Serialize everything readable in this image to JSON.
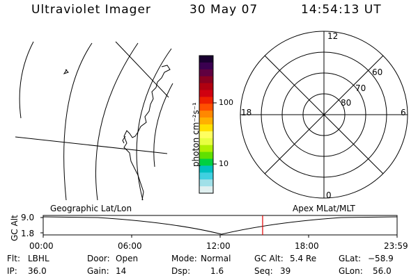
{
  "header": {
    "title": "Ultraviolet Imager",
    "date": "30 May 07",
    "time": "14:54:13 UT"
  },
  "colorbar": {
    "unit_label": "photon cm⁻²s⁻¹",
    "ticks": [
      "100",
      "10"
    ],
    "colors": [
      "#1a0030",
      "#3a0050",
      "#600040",
      "#8a0020",
      "#b00010",
      "#d00010",
      "#ee2000",
      "#ff5000",
      "#ff8800",
      "#ffb000",
      "#ffe000",
      "#ffff60",
      "#e8ff40",
      "#b0f000",
      "#60e000",
      "#00d040",
      "#00c0c0",
      "#40d0e0",
      "#a0e0e8",
      "#e0f0f0"
    ]
  },
  "polar_plot": {
    "labels": {
      "top": "12",
      "bottom": "0",
      "left": "18",
      "right": "6"
    },
    "lat_labels": [
      "60",
      "70",
      "80"
    ]
  },
  "timeline": {
    "left_label": "Geographic Lat/Lon",
    "right_label": "Apex  MLat/MLT",
    "y_axis_title": "GC Alt",
    "y_ticks": [
      "9.0",
      "1.8"
    ],
    "x_ticks": [
      "00:00",
      "06:00",
      "12:00",
      "18:00",
      "23:59"
    ],
    "current_time_fraction": 0.62
  },
  "status": {
    "flt_label": "Flt:",
    "flt_value": "LBHL",
    "ip_label": "IP:",
    "ip_value": "36.0",
    "door_label": "Door:",
    "door_value": "Open",
    "gain_label": "Gain:",
    "gain_value": "14",
    "mode_label": "Mode:",
    "mode_value": "Normal",
    "dsp_label": "Dsp:",
    "dsp_value": "1.6",
    "gcalt_label": "GC Alt:",
    "gcalt_value": "5.4 Re",
    "seq_label": "Seq:",
    "seq_value": "39",
    "glat_label": "GLat:",
    "glat_value": "−58.9",
    "glon_label": "GLon:",
    "glon_value": "56.0"
  }
}
